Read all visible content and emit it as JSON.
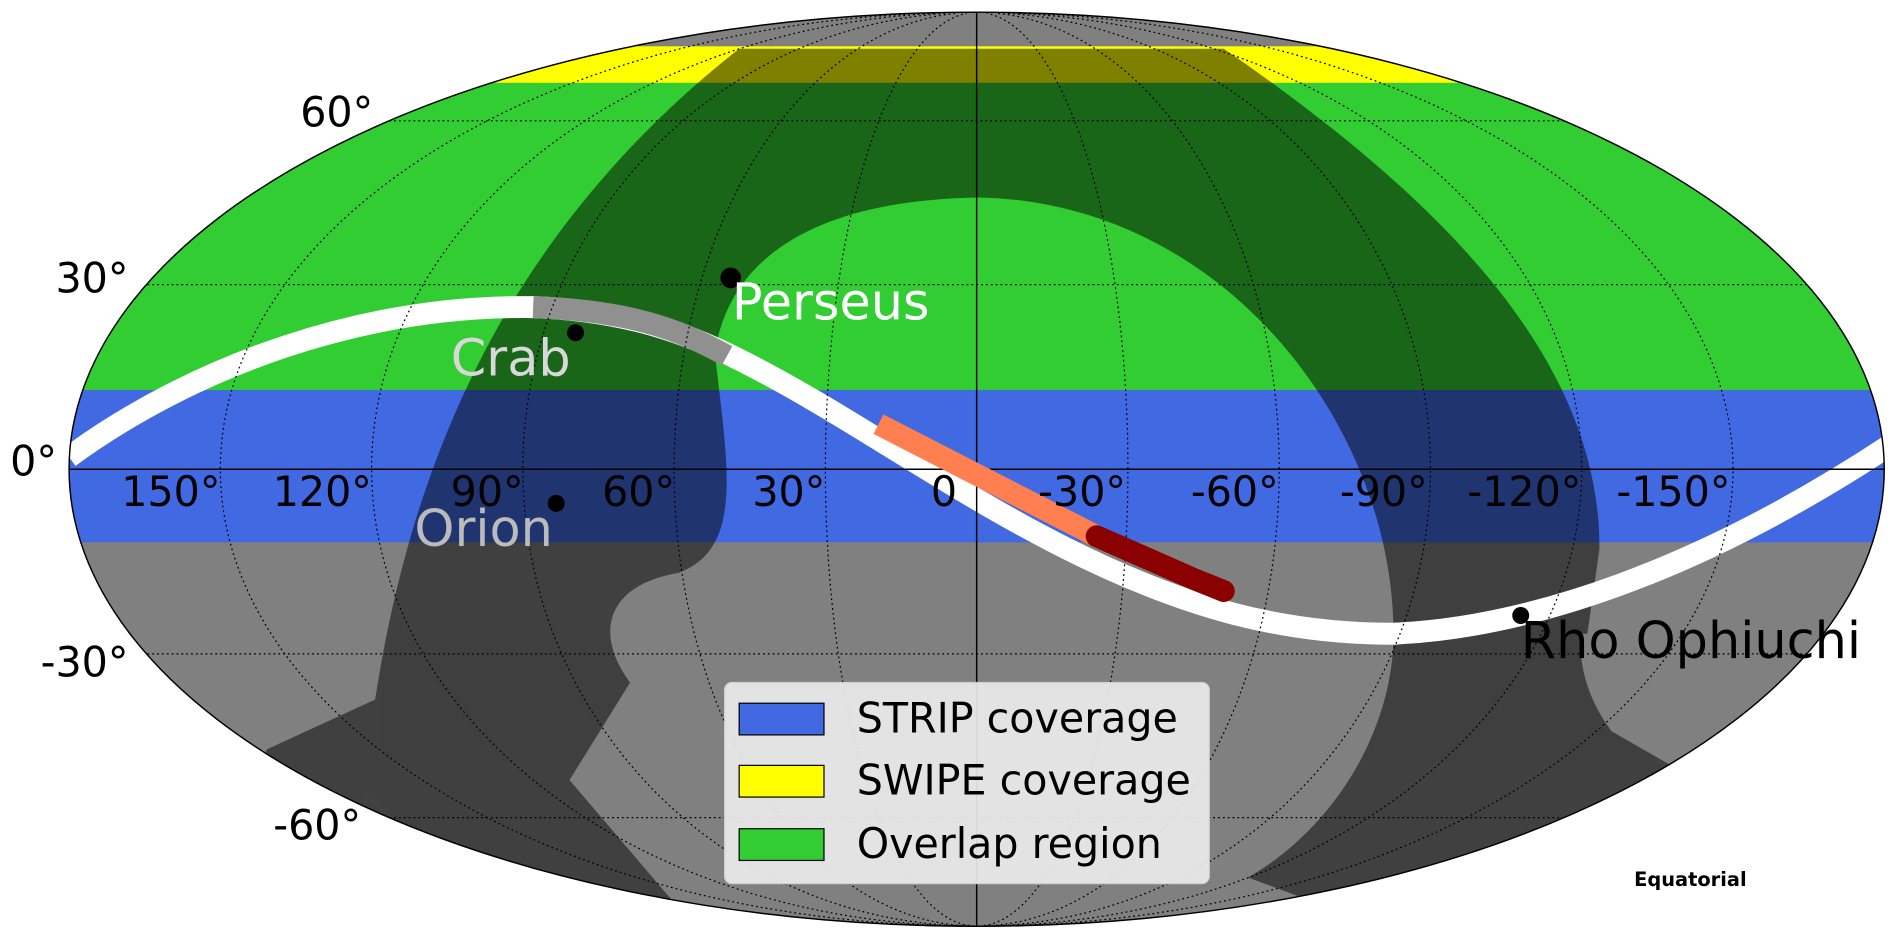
{
  "longitude_ticks": [
    "150°",
    "120°",
    "90°",
    "60°",
    "30°",
    "0",
    "-30°",
    "-60°",
    "-90°",
    "-120°",
    "-150°"
  ],
  "latitude_ticks": [
    "60°",
    "30°",
    "0°",
    "-30°",
    "-60°"
  ],
  "sources": [
    {
      "name": "Perseus"
    },
    {
      "name": "Crab"
    },
    {
      "name": "Orion"
    },
    {
      "name": "Rho Ophiuchi"
    }
  ],
  "legend": [
    {
      "label": "STRIP coverage"
    },
    {
      "label": "SWIPE coverage"
    },
    {
      "label": "Overlap region"
    }
  ],
  "frame_label": "Equatorial"
}
